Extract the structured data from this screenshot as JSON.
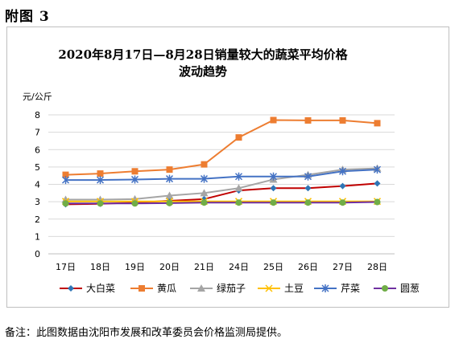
{
  "heading": "附图 3",
  "footnote": "备注：此图数据由沈阳市发展和改革委员会价格监测局提供。",
  "chart_data": {
    "type": "line",
    "title_line1": "2020年8月17日—8月28日销量较大的蔬菜平均价格",
    "title_line2": "波动趋势",
    "ylabel": "元/公斤",
    "xlabel": "",
    "ylim": [
      0,
      8
    ],
    "yticks": [
      0,
      1,
      2,
      3,
      4,
      5,
      6,
      7,
      8
    ],
    "grid": true,
    "legend_position": "bottom",
    "categories": [
      "17日",
      "18日",
      "19日",
      "20日",
      "21日",
      "24日",
      "25日",
      "26日",
      "27日",
      "28日"
    ],
    "series": [
      {
        "name": "大白菜",
        "color": "#2e75b6",
        "marker": "diamond",
        "values": [
          2.85,
          2.88,
          2.95,
          3.05,
          3.15,
          3.65,
          3.78,
          3.78,
          3.9,
          4.05
        ]
      },
      {
        "name": "黄瓜",
        "color": "#ed7d31",
        "marker": "square",
        "values": [
          4.55,
          4.62,
          4.75,
          4.85,
          5.15,
          6.7,
          7.7,
          7.68,
          7.68,
          7.52
        ]
      },
      {
        "name": "绿茄子",
        "color": "#a5a5a5",
        "marker": "triangle",
        "values": [
          3.12,
          3.12,
          3.15,
          3.35,
          3.5,
          3.78,
          4.28,
          4.55,
          4.85,
          4.92
        ]
      },
      {
        "name": "土豆",
        "color": "#ffc000",
        "marker": "x",
        "values": [
          3.02,
          3.02,
          3.02,
          3.02,
          3.02,
          3.02,
          3.02,
          3.02,
          3.02,
          3.02
        ]
      },
      {
        "name": "芹菜",
        "color": "#4472c4",
        "marker": "star",
        "values": [
          4.25,
          4.25,
          4.28,
          4.32,
          4.32,
          4.45,
          4.45,
          4.45,
          4.75,
          4.85
        ]
      },
      {
        "name": "圆葱",
        "color": "#70ad47",
        "marker": "circle",
        "values": [
          2.9,
          2.9,
          2.9,
          2.92,
          2.95,
          2.95,
          2.95,
          2.95,
          2.95,
          2.98
        ]
      }
    ],
    "series_line_color_override": {
      "大白菜": "#c00000",
      "圆葱": "#7030a0"
    }
  }
}
